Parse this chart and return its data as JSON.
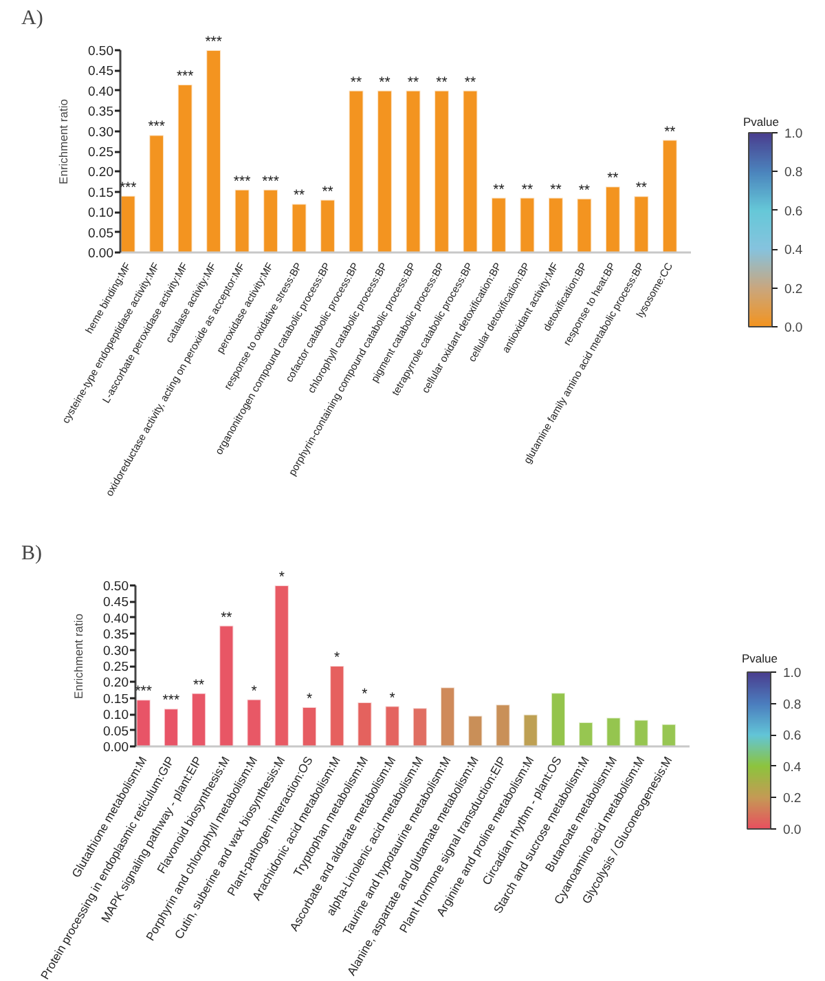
{
  "chart_data": [
    {
      "type": "bar",
      "title": "A)",
      "ylabel": "Enrichment ratio",
      "categories": [
        "heme binding:MF",
        "cysteine-type endopeptidase activity:MF",
        "L-ascorbate peroxidase activity:MF",
        "catalase activity:MF",
        "oxidoreductase activity, acting on peroxide as acceptor:MF",
        "peroxidase activity:MF",
        "response to oxidative stress:BP",
        "organonitrogen compound catabolic process:BP",
        "cofactor catabolic process:BP",
        "chlorophyll catabolic process:BP",
        "porphyrin-containing compound catabolic process:BP",
        "pigment catabolic process:BP",
        "tetrapyrrole catabolic process:BP",
        "cellular oxidant detoxification:BP",
        "cellular detoxification:BP",
        "antioxidant activity:MF",
        "detoxification:BP",
        "response to heat:BP",
        "glutamine family amino acid metabolic process:BP",
        "lysosome:CC"
      ],
      "values": [
        0.14,
        0.29,
        0.415,
        0.5,
        0.155,
        0.155,
        0.12,
        0.13,
        0.4,
        0.4,
        0.4,
        0.4,
        0.4,
        0.135,
        0.135,
        0.135,
        0.133,
        0.163,
        0.139,
        0.278
      ],
      "color": "#f39420",
      "value_labels": [
        "***",
        "***",
        "***",
        "***",
        "***",
        "***",
        "**",
        "**",
        "**",
        "**",
        "**",
        "**",
        "**",
        "**",
        "**",
        "**",
        "**",
        "**",
        "**",
        "**"
      ],
      "ylim": [
        0,
        0.5
      ],
      "yticks": [
        {
          "value": 0,
          "label": "0.00"
        },
        {
          "value": 0.05,
          "label": "0.05"
        },
        {
          "value": 0.1,
          "label": "0.10"
        },
        {
          "value": 0.15,
          "label": "0.15"
        },
        {
          "value": 0.2,
          "label": "0.20"
        },
        {
          "value": 0.25,
          "label": "0.25"
        },
        {
          "value": 0.3,
          "label": "0.30"
        },
        {
          "value": 0.35,
          "label": "0.35"
        },
        {
          "value": 0.4,
          "label": "0.40"
        },
        {
          "value": 0.45,
          "label": "0.45"
        },
        {
          "value": 0.5,
          "label": "0.50"
        }
      ],
      "clabel": "Pvalue",
      "clim": [
        0,
        1
      ],
      "cticks": [
        {
          "value": 0,
          "label": "0.0"
        },
        {
          "value": 0.2,
          "label": "0.2"
        },
        {
          "value": 0.4,
          "label": "0.4"
        },
        {
          "value": 0.6,
          "label": "0.6"
        },
        {
          "value": 0.8,
          "label": "0.8"
        },
        {
          "value": 1,
          "label": "1.0"
        }
      ]
    },
    {
      "type": "bar",
      "title": "B)",
      "ylabel": "Enrichment ratio",
      "categories": [
        "Glutathione metabolism:M",
        "Protein processing in endoplasmic reticulum:GIP",
        "MAPK signaling pathway - plant:EIP",
        "Flavonoid biosynthesis:M",
        "Porphyrin and chlorophyll metabolism:M",
        "Cutin, suberine and wax biosynthesis:M",
        "Plant-pathogen interaction:OS",
        "Arachidonic acid metabolism:M",
        "Tryptophan metabolism:M",
        "Ascorbate and aldarate metabolism:M",
        "alpha-Linolenic acid metabolism:M",
        "Taurine and hypotaurine metabolism:M",
        "Alanine, aspartate and glutamate metabolism:M",
        "Plant hormone signal transduction:EIP",
        "Arginine and proline metabolism:M",
        "Circadian rhythm - plant:OS",
        "Starch and sucrose metabolism:M",
        "Butanoate metabolism:M",
        "Cyanoamino acid metabolism:M",
        "Glycolysis / Gluconeogenesis:M"
      ],
      "values": [
        0.145,
        0.117,
        0.165,
        0.375,
        0.146,
        0.5,
        0.122,
        0.25,
        0.137,
        0.125,
        0.119,
        0.183,
        0.095,
        0.13,
        0.099,
        0.166,
        0.075,
        0.089,
        0.082,
        0.069
      ],
      "colors": [
        "#e85467",
        "#e85467",
        "#e85667",
        "#e85665",
        "#e85866",
        "#e85a64",
        "#e65c62",
        "#e6605f",
        "#e4625e",
        "#e46460",
        "#e06e62",
        "#cf8a5a",
        "#c98f58",
        "#c99058",
        "#bea053",
        "#94c44c",
        "#97c651",
        "#95c54f",
        "#96c550",
        "#97c652"
      ],
      "value_labels": [
        "***",
        "***",
        "**",
        "**",
        "*",
        "*",
        "*",
        "*",
        "*",
        "*",
        null,
        null,
        null,
        null,
        null,
        null,
        null,
        null,
        null,
        null
      ],
      "ylim": [
        0,
        0.5
      ],
      "yticks": [
        {
          "value": 0,
          "label": "0.00"
        },
        {
          "value": 0.05,
          "label": "0.05"
        },
        {
          "value": 0.1,
          "label": "0.10"
        },
        {
          "value": 0.15,
          "label": "0.15"
        },
        {
          "value": 0.2,
          "label": "0.20"
        },
        {
          "value": 0.25,
          "label": "0.25"
        },
        {
          "value": 0.3,
          "label": "0.30"
        },
        {
          "value": 0.35,
          "label": "0.35"
        },
        {
          "value": 0.4,
          "label": "0.40"
        },
        {
          "value": 0.45,
          "label": "0.45"
        },
        {
          "value": 0.5,
          "label": "0.50"
        }
      ],
      "clabel": "Pvalue",
      "clim": [
        0,
        1
      ],
      "cticks": [
        {
          "value": 0,
          "label": "0.0"
        },
        {
          "value": 0.2,
          "label": "0.2"
        },
        {
          "value": 0.4,
          "label": "0.4"
        },
        {
          "value": 0.6,
          "label": "0.6"
        },
        {
          "value": 0.8,
          "label": "0.8"
        },
        {
          "value": 1,
          "label": "1.0"
        }
      ]
    }
  ]
}
